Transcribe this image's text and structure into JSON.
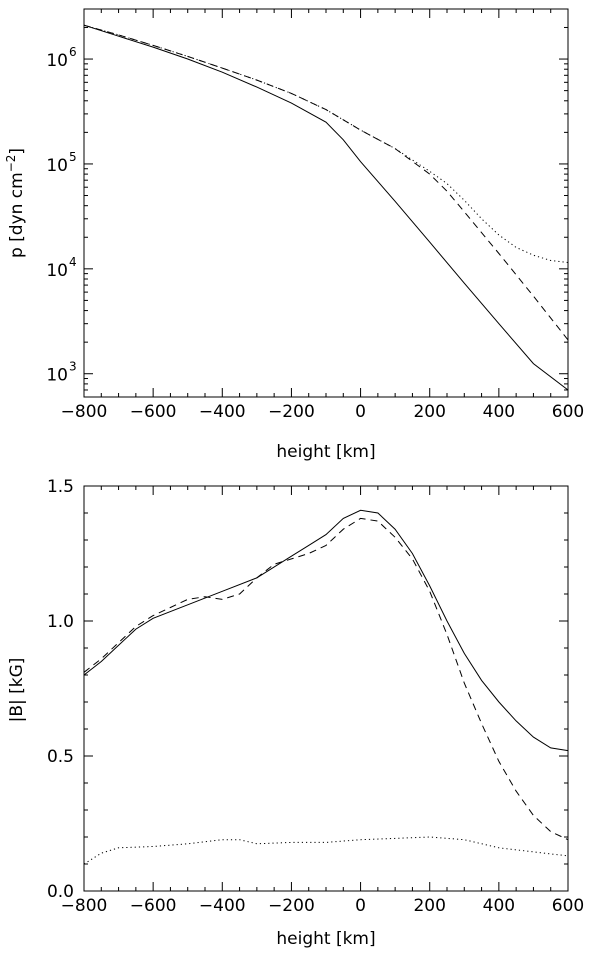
{
  "chart_data": [
    {
      "type": "line",
      "yscale": "log",
      "xlim": [
        -800,
        600
      ],
      "ylim": [
        600,
        3000000
      ],
      "xlabel": "height [km]",
      "ylabel": "p [dyn cm",
      "ylabel_sup": "−2",
      "ylabel_end": "]",
      "xticks": [
        "−800",
        "−600",
        "−400",
        "−200",
        "0",
        "200",
        "400",
        "600"
      ],
      "yticks": [
        {
          "base": "10",
          "exp": "3",
          "value": 1000
        },
        {
          "base": "10",
          "exp": "4",
          "value": 10000
        },
        {
          "base": "10",
          "exp": "5",
          "value": 100000
        },
        {
          "base": "10",
          "exp": "6",
          "value": 1000000
        }
      ],
      "grid": false,
      "series": [
        {
          "style": "solid",
          "x": [
            -800,
            -700,
            -600,
            -500,
            -400,
            -300,
            -200,
            -100,
            -50,
            0,
            100,
            200,
            300,
            400,
            500,
            600
          ],
          "y": [
            2100000,
            1650000,
            1300000,
            1000000,
            750000,
            540000,
            380000,
            250000,
            170000,
            105000,
            44000,
            18000,
            7300,
            3000,
            1250,
            700
          ]
        },
        {
          "style": "dashed",
          "x": [
            -800,
            -700,
            -600,
            -500,
            -400,
            -300,
            -200,
            -100,
            0,
            100,
            200,
            250,
            300,
            400,
            500,
            600
          ],
          "y": [
            2100000,
            1700000,
            1350000,
            1060000,
            820000,
            630000,
            470000,
            330000,
            210000,
            140000,
            80000,
            55000,
            35000,
            14000,
            5500,
            2100
          ]
        },
        {
          "style": "dotted",
          "x": [
            -800,
            -700,
            -600,
            -500,
            -400,
            -300,
            -200,
            -100,
            0,
            100,
            200,
            250,
            300,
            350,
            400,
            450,
            500,
            550,
            600
          ],
          "y": [
            2100000,
            1700000,
            1350000,
            1060000,
            820000,
            630000,
            470000,
            330000,
            210000,
            140000,
            85000,
            65000,
            45000,
            30000,
            21000,
            16000,
            13500,
            12000,
            11500
          ]
        }
      ]
    },
    {
      "type": "line",
      "xlim": [
        -800,
        600
      ],
      "ylim": [
        0.0,
        1.5
      ],
      "xlabel": "height [km]",
      "ylabel": "|B| [kG]",
      "xticks": [
        "−800",
        "−600",
        "−400",
        "−200",
        "0",
        "200",
        "400",
        "600"
      ],
      "yticks": [
        "0.0",
        "0.5",
        "1.0",
        "1.5"
      ],
      "grid": false,
      "series": [
        {
          "style": "solid",
          "x": [
            -800,
            -750,
            -700,
            -650,
            -600,
            -500,
            -400,
            -300,
            -200,
            -150,
            -100,
            -50,
            0,
            50,
            100,
            150,
            200,
            250,
            300,
            350,
            400,
            450,
            500,
            550,
            600
          ],
          "y": [
            0.8,
            0.85,
            0.91,
            0.97,
            1.01,
            1.06,
            1.11,
            1.16,
            1.24,
            1.28,
            1.32,
            1.38,
            1.41,
            1.4,
            1.34,
            1.25,
            1.13,
            1.0,
            0.88,
            0.78,
            0.7,
            0.63,
            0.57,
            0.53,
            0.52
          ]
        },
        {
          "style": "dashed",
          "x": [
            -800,
            -750,
            -700,
            -650,
            -600,
            -550,
            -500,
            -450,
            -400,
            -350,
            -300,
            -250,
            -200,
            -150,
            -100,
            -50,
            0,
            50,
            100,
            150,
            200,
            250,
            300,
            350,
            400,
            450,
            500,
            550,
            600
          ],
          "y": [
            0.81,
            0.86,
            0.92,
            0.98,
            1.02,
            1.05,
            1.08,
            1.09,
            1.08,
            1.1,
            1.16,
            1.21,
            1.23,
            1.25,
            1.28,
            1.34,
            1.38,
            1.37,
            1.31,
            1.23,
            1.11,
            0.95,
            0.77,
            0.62,
            0.48,
            0.37,
            0.28,
            0.22,
            0.19
          ]
        },
        {
          "style": "dotted",
          "x": [
            -800,
            -750,
            -700,
            -600,
            -500,
            -400,
            -350,
            -300,
            -200,
            -100,
            0,
            100,
            200,
            300,
            400,
            500,
            600
          ],
          "y": [
            0.1,
            0.14,
            0.16,
            0.165,
            0.175,
            0.19,
            0.19,
            0.175,
            0.18,
            0.18,
            0.19,
            0.195,
            0.2,
            0.19,
            0.16,
            0.145,
            0.13
          ]
        }
      ]
    }
  ]
}
